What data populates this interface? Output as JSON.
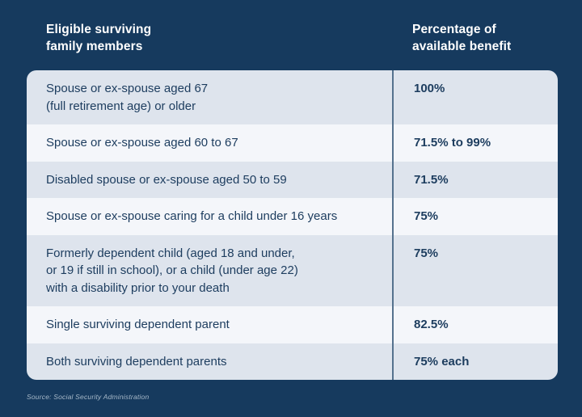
{
  "theme": {
    "bg": "#163a5e",
    "row-shaded": "#dee4ed",
    "row-plain": "#f4f6fa",
    "divider": "#55728e",
    "text-dark": "#1c3c5e",
    "header-text": "#ffffff",
    "source-text": "#a7b9c9"
  },
  "header": {
    "col1": "Eligible surviving\nfamily members",
    "col2": "Percentage of\navailable benefit"
  },
  "table": {
    "rows": [
      {
        "label": "Spouse or ex-spouse aged 67\n(full retirement age) or older",
        "value": "100%"
      },
      {
        "label": "Spouse or ex-spouse aged 60 to 67",
        "value": "71.5% to 99%"
      },
      {
        "label": "Disabled spouse or ex-spouse aged 50 to 59",
        "value": "71.5%"
      },
      {
        "label": "Spouse or ex-spouse caring for a child under 16 years",
        "value": "75%"
      },
      {
        "label": "Formerly dependent child (aged 18 and under,\nor 19 if still in school), or a child (under age 22)\nwith a disability prior to your death",
        "value": "75%"
      },
      {
        "label": "Single surviving dependent parent",
        "value": "82.5%"
      },
      {
        "label": "Both surviving dependent parents",
        "value": "75% each"
      }
    ]
  },
  "source": "Source: Social Security Administration"
}
